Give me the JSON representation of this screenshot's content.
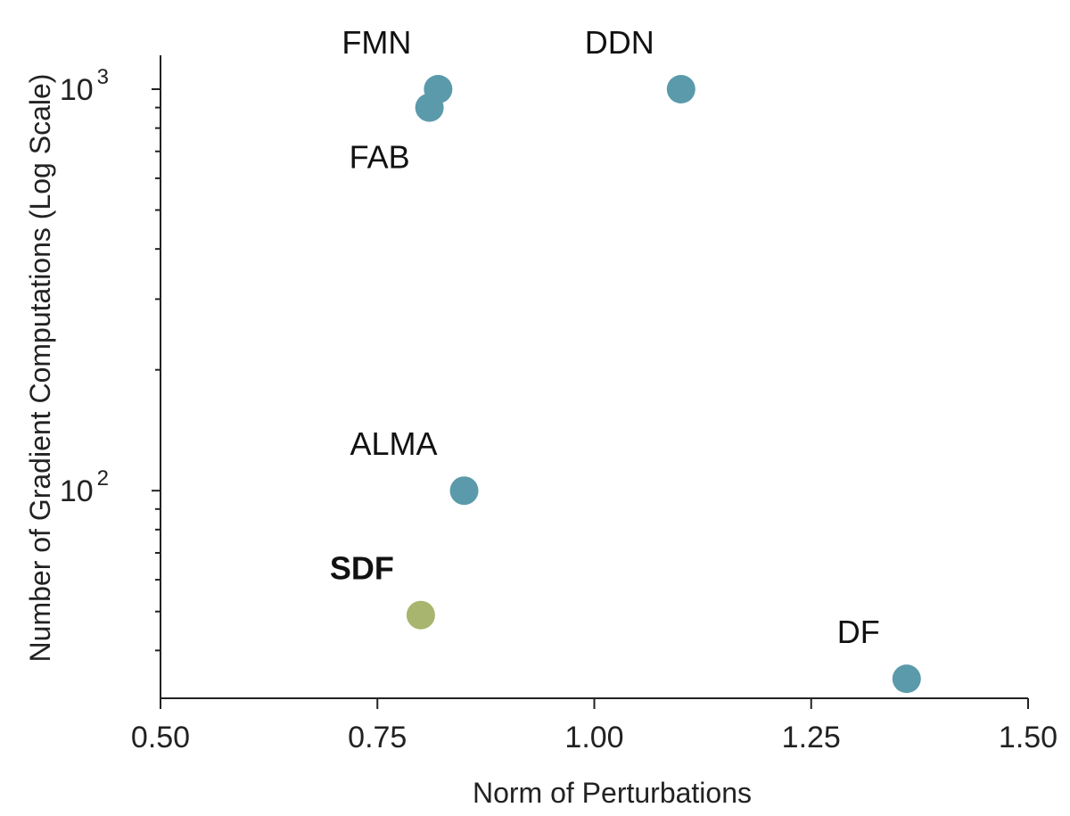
{
  "chart_data": {
    "type": "scatter",
    "xlabel": "Norm of Perturbations",
    "ylabel": "Number of Gradient Computations (Log Scale)",
    "xlim": [
      0.5,
      1.5
    ],
    "ylim": [
      32,
      1000
    ],
    "y_scale": "log",
    "grid": false,
    "x_ticks": [
      "0.50",
      "0.75",
      "1.00",
      "1.25",
      "1.50"
    ],
    "y_ticks": [
      {
        "base": "10",
        "exp": "2",
        "value": 100
      },
      {
        "base": "10",
        "exp": "3",
        "value": 1000
      }
    ],
    "colors": {
      "default": "#5b9aaa",
      "highlight": "#a7b56e"
    },
    "points": [
      {
        "label": "FMN",
        "x": 0.82,
        "y": 1000,
        "bold": false,
        "label_pos": "above-left",
        "color": "#5b9aaa"
      },
      {
        "label": "FAB",
        "x": 0.81,
        "y": 900,
        "bold": false,
        "label_pos": "below-left",
        "color": "#5b9aaa"
      },
      {
        "label": "DDN",
        "x": 1.1,
        "y": 1000,
        "bold": false,
        "label_pos": "above-left",
        "color": "#5b9aaa"
      },
      {
        "label": "ALMA",
        "x": 0.85,
        "y": 100,
        "bold": false,
        "label_pos": "above-left",
        "color": "#5b9aaa"
      },
      {
        "label": "SDF",
        "x": 0.8,
        "y": 49,
        "bold": true,
        "label_pos": "above-left",
        "color": "#a7b56e"
      },
      {
        "label": "DF",
        "x": 1.36,
        "y": 34,
        "bold": false,
        "label_pos": "above-left",
        "color": "#5b9aaa"
      }
    ]
  }
}
